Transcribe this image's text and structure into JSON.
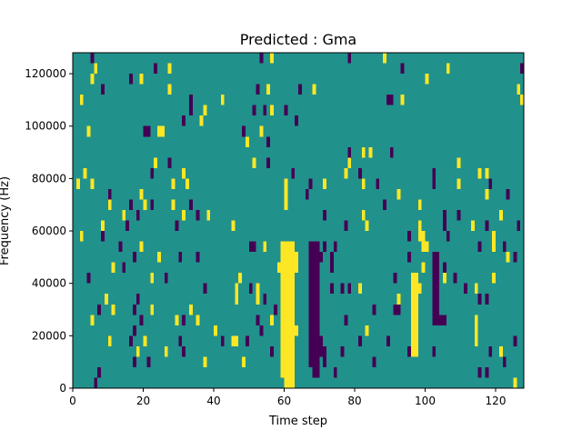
{
  "chart_data": {
    "type": "heatmap",
    "title": "Predicted : Gma",
    "xlabel": "Time step",
    "ylabel": "Frequency (Hz)",
    "xlim": [
      0,
      128
    ],
    "ylim": [
      0,
      128000
    ],
    "bin_hz": 4000,
    "x_ticks": [
      0,
      20,
      40,
      60,
      80,
      100,
      120
    ],
    "x_tick_labels": [
      "0",
      "20",
      "40",
      "60",
      "80",
      "100",
      "120"
    ],
    "y_ticks": [
      0,
      20000,
      40000,
      60000,
      80000,
      100000,
      120000
    ],
    "y_tick_labels": [
      "0",
      "20000",
      "40000",
      "60000",
      "80000",
      "100000",
      "120000"
    ],
    "value_levels": {
      "low": 0,
      "mid": 0.5,
      "high": 1
    },
    "colors": {
      "low": "#440154",
      "mid": "#21918c",
      "high": "#fde725"
    },
    "background_value": 0.5,
    "blocks": [
      [
        59,
        62,
        1,
        13,
        1
      ],
      [
        60,
        62,
        0,
        1,
        1
      ],
      [
        67,
        69,
        2,
        13,
        0
      ],
      [
        68,
        69,
        1,
        2,
        0
      ],
      [
        96,
        97,
        3,
        10,
        1
      ],
      [
        102,
        103,
        6,
        12,
        0
      ]
    ],
    "cells": [
      [
        5,
        31,
        0
      ],
      [
        53,
        31,
        0
      ],
      [
        78,
        31,
        0
      ],
      [
        56,
        31,
        1
      ],
      [
        88,
        31,
        1
      ],
      [
        6,
        30,
        1
      ],
      [
        23,
        30,
        0
      ],
      [
        27,
        30,
        1
      ],
      [
        93,
        30,
        0
      ],
      [
        106,
        30,
        1
      ],
      [
        127,
        30,
        0
      ],
      [
        5,
        29,
        1
      ],
      [
        16,
        29,
        0
      ],
      [
        19,
        29,
        1
      ],
      [
        100,
        29,
        1
      ],
      [
        8,
        28,
        0
      ],
      [
        27,
        28,
        1
      ],
      [
        52,
        28,
        0
      ],
      [
        55,
        28,
        1
      ],
      [
        64,
        28,
        0
      ],
      [
        68,
        28,
        1
      ],
      [
        126,
        28,
        1
      ],
      [
        2,
        27,
        1
      ],
      [
        33,
        27,
        0
      ],
      [
        42,
        27,
        1
      ],
      [
        89,
        27,
        0
      ],
      [
        90,
        27,
        0
      ],
      [
        93,
        27,
        1
      ],
      [
        127,
        27,
        1
      ],
      [
        33,
        26,
        0
      ],
      [
        37,
        26,
        1
      ],
      [
        51,
        26,
        0
      ],
      [
        54,
        26,
        0
      ],
      [
        56,
        26,
        1
      ],
      [
        60,
        26,
        0
      ],
      [
        31,
        25,
        0
      ],
      [
        36,
        25,
        1
      ],
      [
        63,
        25,
        0
      ],
      [
        4,
        24,
        1
      ],
      [
        20,
        24,
        0
      ],
      [
        21,
        24,
        0
      ],
      [
        24,
        24,
        1
      ],
      [
        25,
        24,
        1
      ],
      [
        48,
        24,
        0
      ],
      [
        53,
        24,
        1
      ],
      [
        49,
        23,
        1
      ],
      [
        55,
        23,
        0
      ],
      [
        78,
        22,
        0
      ],
      [
        82,
        22,
        1
      ],
      [
        84,
        22,
        1
      ],
      [
        90,
        22,
        0
      ],
      [
        23,
        21,
        1
      ],
      [
        27,
        21,
        0
      ],
      [
        51,
        21,
        1
      ],
      [
        55,
        21,
        0
      ],
      [
        78,
        21,
        1
      ],
      [
        109,
        21,
        1
      ],
      [
        3,
        20,
        1
      ],
      [
        22,
        20,
        0
      ],
      [
        31,
        20,
        1
      ],
      [
        62,
        20,
        0
      ],
      [
        77,
        20,
        1
      ],
      [
        81,
        20,
        0
      ],
      [
        102,
        20,
        0
      ],
      [
        115,
        20,
        1
      ],
      [
        117,
        20,
        1
      ],
      [
        1,
        19,
        1
      ],
      [
        5,
        19,
        1
      ],
      [
        28,
        19,
        1
      ],
      [
        32,
        19,
        1
      ],
      [
        60,
        19,
        1
      ],
      [
        67,
        19,
        0
      ],
      [
        71,
        19,
        1
      ],
      [
        82,
        19,
        1
      ],
      [
        86,
        19,
        0
      ],
      [
        102,
        19,
        0
      ],
      [
        109,
        19,
        1
      ],
      [
        118,
        19,
        0
      ],
      [
        10,
        18,
        0
      ],
      [
        19,
        18,
        1
      ],
      [
        60,
        18,
        1
      ],
      [
        66,
        18,
        0
      ],
      [
        92,
        18,
        1
      ],
      [
        117,
        18,
        1
      ],
      [
        123,
        18,
        0
      ],
      [
        10,
        17,
        1
      ],
      [
        16,
        17,
        0
      ],
      [
        20,
        17,
        1
      ],
      [
        22,
        17,
        0
      ],
      [
        28,
        17,
        1
      ],
      [
        33,
        17,
        0
      ],
      [
        60,
        17,
        1
      ],
      [
        88,
        17,
        0
      ],
      [
        98,
        17,
        1
      ],
      [
        14,
        16,
        1
      ],
      [
        18,
        16,
        0
      ],
      [
        31,
        16,
        1
      ],
      [
        35,
        16,
        0
      ],
      [
        38,
        16,
        1
      ],
      [
        71,
        16,
        0
      ],
      [
        82,
        16,
        1
      ],
      [
        105,
        16,
        0
      ],
      [
        109,
        16,
        0
      ],
      [
        121,
        16,
        1
      ],
      [
        8,
        15,
        1
      ],
      [
        15,
        15,
        0
      ],
      [
        29,
        15,
        0
      ],
      [
        45,
        15,
        1
      ],
      [
        77,
        15,
        0
      ],
      [
        83,
        15,
        1
      ],
      [
        98,
        15,
        1
      ],
      [
        105,
        15,
        0
      ],
      [
        113,
        15,
        1
      ],
      [
        117,
        15,
        0
      ],
      [
        126,
        15,
        0
      ],
      [
        2,
        14,
        1
      ],
      [
        8,
        14,
        0
      ],
      [
        95,
        14,
        0
      ],
      [
        98,
        14,
        1
      ],
      [
        99,
        14,
        1
      ],
      [
        106,
        14,
        0
      ],
      [
        119,
        14,
        1
      ],
      [
        13,
        13,
        0
      ],
      [
        19,
        13,
        1
      ],
      [
        50,
        13,
        0
      ],
      [
        51,
        13,
        0
      ],
      [
        54,
        13,
        1
      ],
      [
        71,
        13,
        0
      ],
      [
        74,
        13,
        0
      ],
      [
        99,
        13,
        1
      ],
      [
        100,
        13,
        1
      ],
      [
        115,
        13,
        0
      ],
      [
        119,
        13,
        1
      ],
      [
        122,
        13,
        0
      ],
      [
        17,
        12,
        0
      ],
      [
        24,
        12,
        1
      ],
      [
        30,
        12,
        0
      ],
      [
        35,
        12,
        0
      ],
      [
        63,
        12,
        1
      ],
      [
        70,
        12,
        0
      ],
      [
        73,
        12,
        0
      ],
      [
        95,
        12,
        0
      ],
      [
        123,
        12,
        1
      ],
      [
        125,
        12,
        0
      ],
      [
        11,
        11,
        1
      ],
      [
        14,
        11,
        0
      ],
      [
        58,
        11,
        1
      ],
      [
        63,
        11,
        1
      ],
      [
        73,
        11,
        0
      ],
      [
        99,
        11,
        1
      ],
      [
        105,
        11,
        0
      ],
      [
        4,
        10,
        0
      ],
      [
        22,
        10,
        1
      ],
      [
        26,
        10,
        0
      ],
      [
        47,
        10,
        1
      ],
      [
        91,
        10,
        0
      ],
      [
        105,
        10,
        1
      ],
      [
        108,
        10,
        0
      ],
      [
        119,
        10,
        1
      ],
      [
        37,
        9,
        0
      ],
      [
        46,
        9,
        1
      ],
      [
        50,
        9,
        0
      ],
      [
        52,
        9,
        1
      ],
      [
        73,
        9,
        0
      ],
      [
        76,
        9,
        0
      ],
      [
        78,
        9,
        0
      ],
      [
        81,
        9,
        1
      ],
      [
        98,
        9,
        1
      ],
      [
        111,
        9,
        0
      ],
      [
        114,
        9,
        1
      ],
      [
        9,
        8,
        1
      ],
      [
        18,
        8,
        0
      ],
      [
        46,
        8,
        1
      ],
      [
        52,
        8,
        1
      ],
      [
        54,
        8,
        0
      ],
      [
        92,
        8,
        1
      ],
      [
        103,
        8,
        0
      ],
      [
        115,
        8,
        0
      ],
      [
        117,
        8,
        0
      ],
      [
        7,
        7,
        0
      ],
      [
        11,
        7,
        1
      ],
      [
        17,
        7,
        0
      ],
      [
        22,
        7,
        1
      ],
      [
        33,
        7,
        1
      ],
      [
        57,
        7,
        0
      ],
      [
        85,
        7,
        0
      ],
      [
        91,
        7,
        0
      ],
      [
        92,
        7,
        0
      ],
      [
        5,
        6,
        1
      ],
      [
        19,
        6,
        0
      ],
      [
        29,
        6,
        1
      ],
      [
        31,
        6,
        0
      ],
      [
        35,
        6,
        1
      ],
      [
        52,
        6,
        0
      ],
      [
        56,
        6,
        1
      ],
      [
        77,
        6,
        0
      ],
      [
        104,
        6,
        0
      ],
      [
        105,
        6,
        0
      ],
      [
        114,
        6,
        1
      ],
      [
        17,
        5,
        0
      ],
      [
        40,
        5,
        1
      ],
      [
        53,
        5,
        0
      ],
      [
        63,
        5,
        1
      ],
      [
        83,
        5,
        1
      ],
      [
        114,
        5,
        1
      ],
      [
        10,
        4,
        1
      ],
      [
        16,
        4,
        0
      ],
      [
        20,
        4,
        1
      ],
      [
        30,
        4,
        0
      ],
      [
        42,
        4,
        0
      ],
      [
        45,
        4,
        1
      ],
      [
        46,
        4,
        1
      ],
      [
        49,
        4,
        0
      ],
      [
        70,
        4,
        0
      ],
      [
        81,
        4,
        0
      ],
      [
        89,
        4,
        0
      ],
      [
        114,
        4,
        1
      ],
      [
        125,
        4,
        0
      ],
      [
        18,
        3,
        1
      ],
      [
        26,
        3,
        1
      ],
      [
        31,
        3,
        0
      ],
      [
        56,
        3,
        0
      ],
      [
        70,
        3,
        0
      ],
      [
        71,
        3,
        0
      ],
      [
        76,
        3,
        0
      ],
      [
        95,
        3,
        0
      ],
      [
        102,
        3,
        0
      ],
      [
        118,
        3,
        0
      ],
      [
        121,
        3,
        1
      ],
      [
        17,
        2,
        0
      ],
      [
        21,
        2,
        0
      ],
      [
        37,
        2,
        1
      ],
      [
        48,
        2,
        1
      ],
      [
        71,
        2,
        0
      ],
      [
        85,
        2,
        0
      ],
      [
        122,
        2,
        0
      ],
      [
        7,
        1,
        0
      ],
      [
        74,
        1,
        0
      ],
      [
        115,
        1,
        0
      ],
      [
        117,
        1,
        0
      ],
      [
        6,
        0,
        0
      ],
      [
        125,
        0,
        1
      ]
    ]
  }
}
